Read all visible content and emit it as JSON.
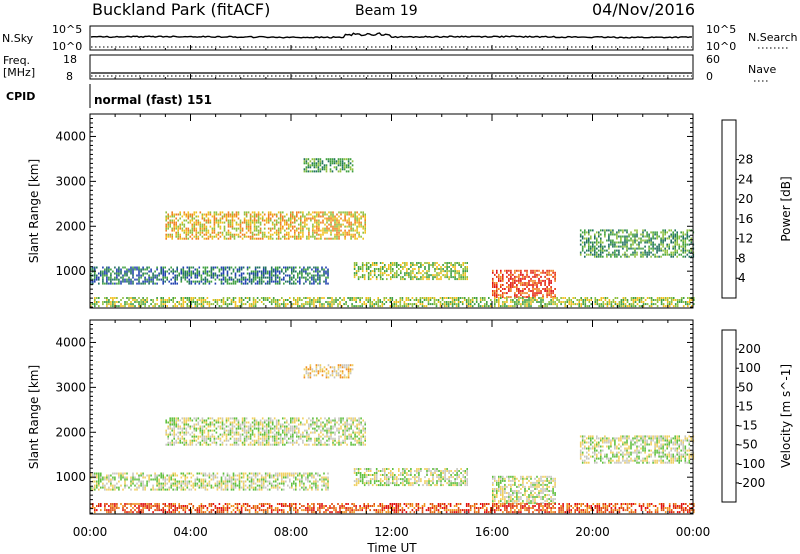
{
  "header": {
    "station": "Buckland Park (fitACF)",
    "beam": "Beam 19",
    "date": "04/Nov/2016"
  },
  "strips": {
    "nsky_label": "N.Sky",
    "nsky_tick_top": "10^5",
    "nsky_tick_bottom": "10^0",
    "nsearch_label": "N.Search",
    "nsearch_tick_top": "10^5",
    "nsearch_tick_bottom": "10^0",
    "freq_label_1": "Freq.",
    "freq_label_2": "[MHz]",
    "freq_tick_top": "18",
    "freq_tick_bottom": "8",
    "nave_label": "Nave",
    "nave_tick_top": "60",
    "nave_tick_bottom": "0",
    "cpid_label": "CPID",
    "cpid_value": "normal (fast) 151"
  },
  "chart_data": [
    {
      "type": "heatmap",
      "panel": "power",
      "xlabel": "Time UT",
      "ylabel": "Slant Range [km]",
      "xlim_hours": [
        0,
        24
      ],
      "ylim_km": [
        180,
        4500
      ],
      "x_ticks": [
        "00:00",
        "04:00",
        "08:00",
        "12:00",
        "16:00",
        "20:00",
        "00:00"
      ],
      "y_ticks": [
        1000,
        2000,
        3000,
        4000
      ],
      "colorbar": {
        "label": "Power [dB]",
        "tick_labels": [
          "4",
          "8",
          "12",
          "16",
          "20",
          "24",
          "28"
        ],
        "colors": [
          "#1010e0",
          "#2040b0",
          "#207060",
          "#40a040",
          "#90c040",
          "#f0c020",
          "#f08020",
          "#e83010",
          "#e01010"
        ]
      },
      "echo_regions": [
        {
          "t0": 0.0,
          "t1": 9.5,
          "r0": 700,
          "r1": 1100,
          "level": 2
        },
        {
          "t0": 3.0,
          "t1": 11.0,
          "r0": 1700,
          "r1": 2300,
          "level": 5
        },
        {
          "t0": 8.5,
          "t1": 10.5,
          "r0": 3200,
          "r1": 3500,
          "level": 3
        },
        {
          "t0": 10.5,
          "t1": 15.0,
          "r0": 800,
          "r1": 1200,
          "level": 4
        },
        {
          "t0": 16.0,
          "t1": 18.5,
          "r0": 400,
          "r1": 1000,
          "level": 7
        },
        {
          "t0": 19.5,
          "t1": 24.0,
          "r0": 1300,
          "r1": 1900,
          "level": 3
        },
        {
          "t0": 0.0,
          "t1": 24.0,
          "r0": 200,
          "r1": 400,
          "level": 4
        }
      ]
    },
    {
      "type": "heatmap",
      "panel": "velocity",
      "xlabel": "Time UT",
      "ylabel": "Slant Range [km]",
      "xlim_hours": [
        0,
        24
      ],
      "ylim_km": [
        180,
        4500
      ],
      "x_ticks": [
        "00:00",
        "04:00",
        "08:00",
        "12:00",
        "16:00",
        "20:00",
        "00:00"
      ],
      "y_ticks": [
        1000,
        2000,
        3000,
        4000
      ],
      "colorbar": {
        "label": "Velocity [m s^-1]",
        "tick_labels": [
          "200",
          "100",
          "50",
          "15",
          "-15",
          "-50",
          "-100",
          "-200"
        ],
        "colors": [
          "#1020c0",
          "#304090",
          "#207050",
          "#60c040",
          "#c8c8c0",
          "#f0d060",
          "#f09020",
          "#e05010",
          "#e01010"
        ]
      },
      "echo_regions": [
        {
          "t0": 0.0,
          "t1": 9.5,
          "r0": 700,
          "r1": 1100,
          "level": 4
        },
        {
          "t0": 3.0,
          "t1": 11.0,
          "r0": 1700,
          "r1": 2300,
          "level": 4
        },
        {
          "t0": 8.5,
          "t1": 10.5,
          "r0": 3200,
          "r1": 3500,
          "level": 5
        },
        {
          "t0": 10.5,
          "t1": 15.0,
          "r0": 800,
          "r1": 1200,
          "level": 4
        },
        {
          "t0": 16.0,
          "t1": 18.5,
          "r0": 400,
          "r1": 1000,
          "level": 4
        },
        {
          "t0": 19.5,
          "t1": 24.0,
          "r0": 1300,
          "r1": 1900,
          "level": 4
        },
        {
          "t0": 0.0,
          "t1": 24.0,
          "r0": 200,
          "r1": 400,
          "level": 7
        }
      ]
    }
  ]
}
